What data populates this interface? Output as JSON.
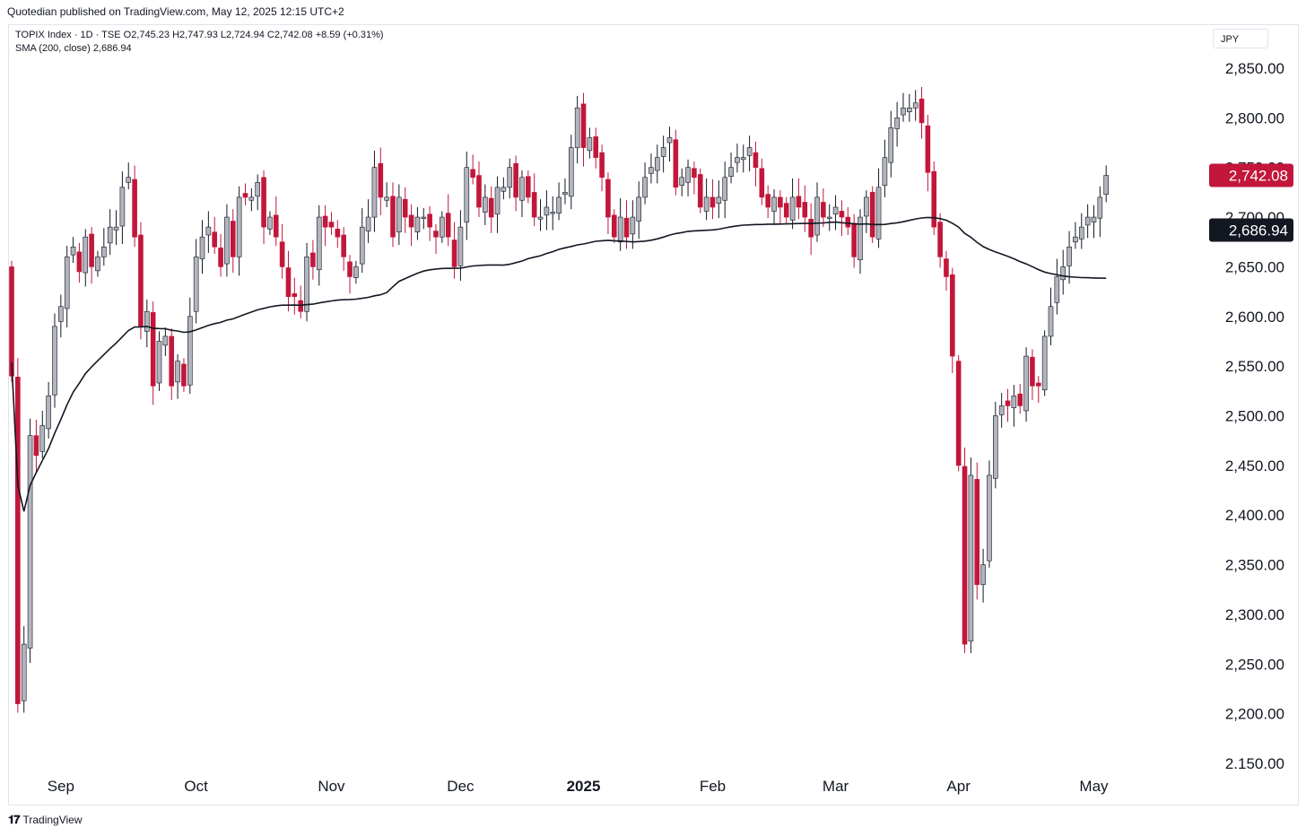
{
  "publisher_line": "Quotedian published on TradingView.com, May 12, 2025 12:15 UTC+2",
  "legend": {
    "line1": "TOPIX Index · 1D · TSE  O2,745.23  H2,747.93  L2,724.94  C2,742.08  +8.59 (+0.31%)",
    "line2": "SMA (200, close)  2,686.94"
  },
  "currency": "JPY",
  "footer": "TradingView",
  "colors": {
    "up": "#b2b5be",
    "down": "#c2163b",
    "sma": "#131722",
    "price_label": "#c2163b",
    "sma_label": "#131722"
  },
  "chart_data": {
    "type": "candlestick",
    "y_ticks": [
      "2,850.00",
      "2,800.00",
      "2,750.00",
      "2,700.00",
      "2,650.00",
      "2,600.00",
      "2,550.00",
      "2,500.00",
      "2,450.00",
      "2,400.00",
      "2,350.00",
      "2,300.00",
      "2,250.00",
      "2,200.00",
      "2.150.00"
    ],
    "x_ticks": [
      {
        "label": "Sep",
        "i": 8
      },
      {
        "label": "Oct",
        "i": 30
      },
      {
        "label": "Nov",
        "i": 52
      },
      {
        "label": "Dec",
        "i": 73
      },
      {
        "label": "2025",
        "i": 93
      },
      {
        "label": "Feb",
        "i": 114
      },
      {
        "label": "Mar",
        "i": 134
      },
      {
        "label": "Apr",
        "i": 154
      },
      {
        "label": "May",
        "i": 176
      }
    ],
    "last_price": {
      "value": 2742.08,
      "label": "2,742.08"
    },
    "sma_last": {
      "value": 2686.94,
      "label": "2,686.94"
    },
    "closes": [
      2540,
      2210,
      2270,
      2480,
      2460,
      2490,
      2520,
      2590,
      2610,
      2660,
      2670,
      2645,
      2680,
      2650,
      2660,
      2670,
      2690,
      2690,
      2730,
      2740,
      2680,
      2590,
      2605,
      2530,
      2575,
      2580,
      2530,
      2555,
      2530,
      2600,
      2660,
      2680,
      2690,
      2670,
      2650,
      2700,
      2660,
      2720,
      2720,
      2720,
      2735,
      2690,
      2700,
      2680,
      2650,
      2620,
      2620,
      2605,
      2660,
      2650,
      2700,
      2690,
      2690,
      2680,
      2660,
      2640,
      2650,
      2690,
      2700,
      2750,
      2720,
      2720,
      2680,
      2720,
      2700,
      2690,
      2700,
      2700,
      2690,
      2680,
      2700,
      2680,
      2650,
      2690,
      2750,
      2740,
      2710,
      2720,
      2700,
      2730,
      2730,
      2750,
      2720,
      2740,
      2720,
      2700,
      2700,
      2710,
      2705,
      2720,
      2725,
      2770,
      2810,
      2770,
      2780,
      2760,
      2740,
      2700,
      2680,
      2700,
      2680,
      2700,
      2720,
      2740,
      2750,
      2760,
      2770,
      2780,
      2730,
      2740,
      2750,
      2740,
      2710,
      2720,
      2710,
      2720,
      2740,
      2750,
      2760,
      2760,
      2770,
      2750,
      2720,
      2710,
      2720,
      2710,
      2700,
      2720,
      2710,
      2700,
      2680,
      2720,
      2700,
      2700,
      2710,
      2700,
      2690,
      2660,
      2700,
      2720,
      2680,
      2730,
      2760,
      2790,
      2800,
      2810,
      2810,
      2815,
      2795,
      2745,
      2690,
      2660,
      2640,
      2560,
      2450,
      2270,
      2440,
      2330,
      2350,
      2440,
      2500,
      2510,
      2510,
      2520,
      2510,
      2560,
      2530,
      2530,
      2580,
      2610,
      2640,
      2650,
      2670,
      2680,
      2690,
      2700,
      2700,
      2720,
      2742
    ]
  }
}
